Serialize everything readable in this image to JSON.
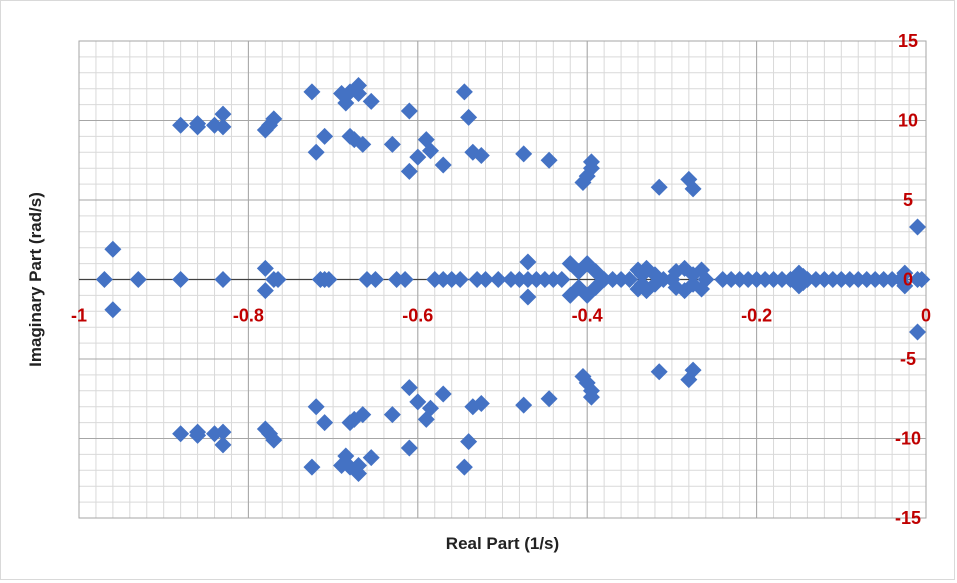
{
  "chart_data": {
    "type": "scatter",
    "title": "",
    "xlabel": "Real Part (1/s)",
    "ylabel": "Imaginary Part (rad/s)",
    "xlim": [
      -1,
      0
    ],
    "ylim": [
      -15,
      15
    ],
    "x_ticks": [
      -1,
      -0.8,
      -0.6,
      -0.4,
      -0.2,
      0
    ],
    "x_tick_labels": [
      "-1",
      "-0.8",
      "-0.6",
      "-0.4",
      "-0.2",
      "0"
    ],
    "y_ticks": [
      -15,
      -10,
      -5,
      0,
      5,
      10,
      15
    ],
    "y_tick_labels": [
      "-15",
      "-10",
      "-5",
      "0",
      "5",
      "10",
      "15"
    ],
    "grid": true,
    "minor_grid": true,
    "legend": "none",
    "marker": "diamond",
    "marker_color": "#4472c4",
    "tick_label_color": "#c00000",
    "series": [
      {
        "points": [
          [
            -0.97,
            0
          ],
          [
            -0.96,
            1.9
          ],
          [
            -0.96,
            -1.9
          ],
          [
            -0.93,
            0
          ],
          [
            -0.88,
            9.7
          ],
          [
            -0.88,
            -9.7
          ],
          [
            -0.88,
            0
          ],
          [
            -0.86,
            9.8
          ],
          [
            -0.86,
            -9.8
          ],
          [
            -0.86,
            9.6
          ],
          [
            -0.86,
            -9.6
          ],
          [
            -0.84,
            9.7
          ],
          [
            -0.84,
            -9.7
          ],
          [
            -0.83,
            10.4
          ],
          [
            -0.83,
            -10.4
          ],
          [
            -0.83,
            9.6
          ],
          [
            -0.83,
            -9.6
          ],
          [
            -0.83,
            0
          ],
          [
            -0.78,
            9.4
          ],
          [
            -0.78,
            -9.4
          ],
          [
            -0.78,
            0.7
          ],
          [
            -0.78,
            -0.7
          ],
          [
            -0.775,
            9.7
          ],
          [
            -0.775,
            -9.7
          ],
          [
            -0.77,
            10.1
          ],
          [
            -0.77,
            -10.1
          ],
          [
            -0.77,
            0
          ],
          [
            -0.765,
            0
          ],
          [
            -0.725,
            11.8
          ],
          [
            -0.725,
            -11.8
          ],
          [
            -0.72,
            8.0
          ],
          [
            -0.72,
            -8.0
          ],
          [
            -0.715,
            0
          ],
          [
            -0.71,
            0
          ],
          [
            -0.705,
            0
          ],
          [
            -0.71,
            9.0
          ],
          [
            -0.71,
            -9.0
          ],
          [
            -0.69,
            11.7
          ],
          [
            -0.69,
            -11.7
          ],
          [
            -0.685,
            11.1
          ],
          [
            -0.685,
            -11.1
          ],
          [
            -0.68,
            11.8
          ],
          [
            -0.68,
            -11.8
          ],
          [
            -0.68,
            9.0
          ],
          [
            -0.68,
            -9.0
          ],
          [
            -0.675,
            8.8
          ],
          [
            -0.675,
            -8.8
          ],
          [
            -0.67,
            12.2
          ],
          [
            -0.67,
            -12.2
          ],
          [
            -0.67,
            11.7
          ],
          [
            -0.67,
            -11.7
          ],
          [
            -0.665,
            8.5
          ],
          [
            -0.665,
            -8.5
          ],
          [
            -0.655,
            11.2
          ],
          [
            -0.655,
            -11.2
          ],
          [
            -0.66,
            0
          ],
          [
            -0.65,
            0
          ],
          [
            -0.63,
            8.5
          ],
          [
            -0.63,
            -8.5
          ],
          [
            -0.625,
            0
          ],
          [
            -0.615,
            0
          ],
          [
            -0.61,
            10.6
          ],
          [
            -0.61,
            -10.6
          ],
          [
            -0.61,
            6.8
          ],
          [
            -0.61,
            -6.8
          ],
          [
            -0.6,
            7.7
          ],
          [
            -0.6,
            -7.7
          ],
          [
            -0.59,
            8.8
          ],
          [
            -0.59,
            -8.8
          ],
          [
            -0.585,
            8.1
          ],
          [
            -0.585,
            -8.1
          ],
          [
            -0.58,
            0
          ],
          [
            -0.57,
            0
          ],
          [
            -0.57,
            7.2
          ],
          [
            -0.57,
            -7.2
          ],
          [
            -0.56,
            0
          ],
          [
            -0.55,
            0
          ],
          [
            -0.545,
            11.8
          ],
          [
            -0.545,
            -11.8
          ],
          [
            -0.54,
            10.2
          ],
          [
            -0.54,
            -10.2
          ],
          [
            -0.535,
            8.0
          ],
          [
            -0.535,
            -8.0
          ],
          [
            -0.525,
            7.8
          ],
          [
            -0.525,
            -7.8
          ],
          [
            -0.53,
            0
          ],
          [
            -0.52,
            0
          ],
          [
            -0.505,
            0
          ],
          [
            -0.475,
            7.9
          ],
          [
            -0.475,
            -7.9
          ],
          [
            -0.47,
            1.1
          ],
          [
            -0.47,
            -1.1
          ],
          [
            -0.49,
            0
          ],
          [
            -0.48,
            0
          ],
          [
            -0.47,
            0
          ],
          [
            -0.46,
            0
          ],
          [
            -0.445,
            7.5
          ],
          [
            -0.445,
            -7.5
          ],
          [
            -0.45,
            0
          ],
          [
            -0.44,
            0
          ],
          [
            -0.43,
            0
          ],
          [
            -0.42,
            1.0
          ],
          [
            -0.42,
            -1.0
          ],
          [
            -0.41,
            0.5
          ],
          [
            -0.41,
            -0.5
          ],
          [
            -0.405,
            6.1
          ],
          [
            -0.405,
            -6.1
          ],
          [
            -0.4,
            6.5
          ],
          [
            -0.4,
            -6.5
          ],
          [
            -0.395,
            7.4
          ],
          [
            -0.395,
            -7.4
          ],
          [
            -0.395,
            7.0
          ],
          [
            -0.395,
            -7.0
          ],
          [
            -0.4,
            1.0
          ],
          [
            -0.4,
            -1.0
          ],
          [
            -0.39,
            0.5
          ],
          [
            -0.39,
            -0.5
          ],
          [
            -0.38,
            0
          ],
          [
            -0.37,
            0
          ],
          [
            -0.36,
            0
          ],
          [
            -0.35,
            0
          ],
          [
            -0.34,
            0.6
          ],
          [
            -0.34,
            -0.6
          ],
          [
            -0.335,
            0.3
          ],
          [
            -0.335,
            -0.3
          ],
          [
            -0.33,
            0.7
          ],
          [
            -0.33,
            -0.7
          ],
          [
            -0.32,
            0.3
          ],
          [
            -0.32,
            -0.3
          ],
          [
            -0.315,
            5.8
          ],
          [
            -0.315,
            -5.8
          ],
          [
            -0.31,
            0
          ],
          [
            -0.3,
            0
          ],
          [
            -0.295,
            0.5
          ],
          [
            -0.295,
            -0.5
          ],
          [
            -0.285,
            0.7
          ],
          [
            -0.285,
            -0.7
          ],
          [
            -0.28,
            6.3
          ],
          [
            -0.28,
            -6.3
          ],
          [
            -0.275,
            5.7
          ],
          [
            -0.275,
            -5.7
          ],
          [
            -0.275,
            0.3
          ],
          [
            -0.275,
            -0.3
          ],
          [
            -0.265,
            0.6
          ],
          [
            -0.265,
            -0.6
          ],
          [
            -0.26,
            0
          ],
          [
            -0.24,
            0
          ],
          [
            -0.23,
            0
          ],
          [
            -0.22,
            0
          ],
          [
            -0.21,
            0
          ],
          [
            -0.2,
            0
          ],
          [
            -0.19,
            0
          ],
          [
            -0.18,
            0
          ],
          [
            -0.17,
            0
          ],
          [
            -0.16,
            0
          ],
          [
            -0.15,
            0.4
          ],
          [
            -0.15,
            -0.4
          ],
          [
            -0.145,
            0.2
          ],
          [
            -0.145,
            -0.2
          ],
          [
            -0.14,
            0
          ],
          [
            -0.13,
            0
          ],
          [
            -0.12,
            0
          ],
          [
            -0.11,
            0
          ],
          [
            -0.1,
            0
          ],
          [
            -0.09,
            0
          ],
          [
            -0.08,
            0
          ],
          [
            -0.07,
            0
          ],
          [
            -0.06,
            0
          ],
          [
            -0.05,
            0
          ],
          [
            -0.04,
            0
          ],
          [
            -0.03,
            0
          ],
          [
            -0.025,
            0.4
          ],
          [
            -0.025,
            -0.4
          ],
          [
            -0.01,
            3.3
          ],
          [
            -0.01,
            -3.3
          ],
          [
            -0.01,
            0
          ],
          [
            -0.005,
            0
          ]
        ]
      }
    ]
  }
}
